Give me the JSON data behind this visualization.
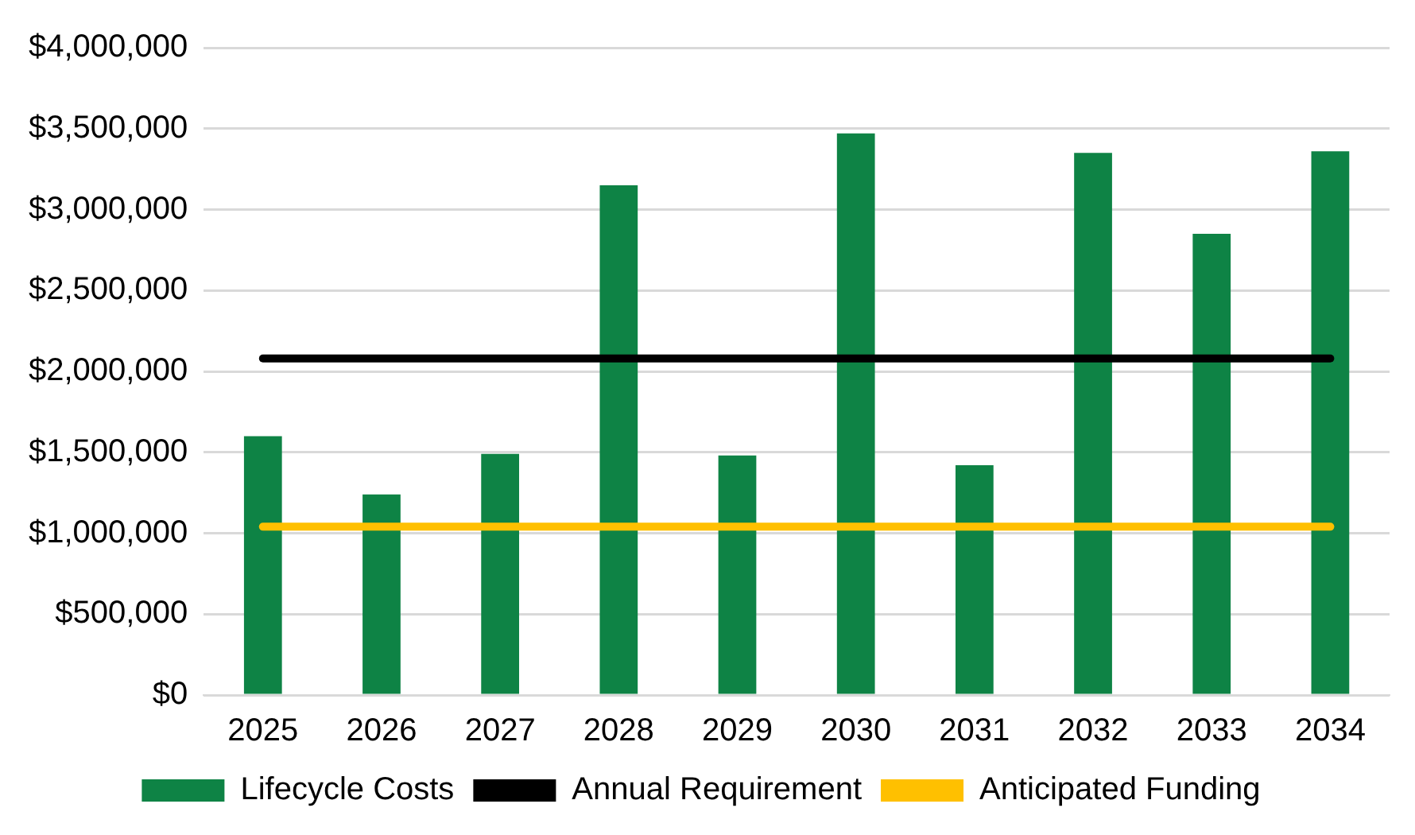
{
  "chart_data": {
    "type": "bar",
    "categories": [
      "2025",
      "2026",
      "2027",
      "2028",
      "2029",
      "2030",
      "2031",
      "2032",
      "2033",
      "2034"
    ],
    "series": [
      {
        "name": "Lifecycle Costs",
        "color": "#0e8345",
        "values": [
          1600000,
          1240000,
          1490000,
          3150000,
          1480000,
          3470000,
          1420000,
          3350000,
          2850000,
          3360000
        ]
      },
      {
        "name": "Annual Requirement",
        "type": "line",
        "color": "#000000",
        "values": [
          2080000,
          2080000,
          2080000,
          2080000,
          2080000,
          2080000,
          2080000,
          2080000,
          2080000,
          2080000
        ]
      },
      {
        "name": "Anticipated Funding",
        "type": "line",
        "color": "#ffc000",
        "values": [
          1040000,
          1040000,
          1040000,
          1040000,
          1040000,
          1040000,
          1040000,
          1040000,
          1040000,
          1040000
        ]
      }
    ],
    "ylim": [
      0,
      4000000
    ],
    "yticks": [
      {
        "value": 0,
        "label": "$0"
      },
      {
        "value": 500000,
        "label": "$500,000"
      },
      {
        "value": 1000000,
        "label": "$1,000,000"
      },
      {
        "value": 1500000,
        "label": "$1,500,000"
      },
      {
        "value": 2000000,
        "label": "$2,000,000"
      },
      {
        "value": 2500000,
        "label": "$2,500,000"
      },
      {
        "value": 3000000,
        "label": "$3,000,000"
      },
      {
        "value": 3500000,
        "label": "$3,500,000"
      },
      {
        "value": 4000000,
        "label": "$4,000,000"
      }
    ],
    "grid": "y",
    "legend": "bottom",
    "marker": "none"
  }
}
